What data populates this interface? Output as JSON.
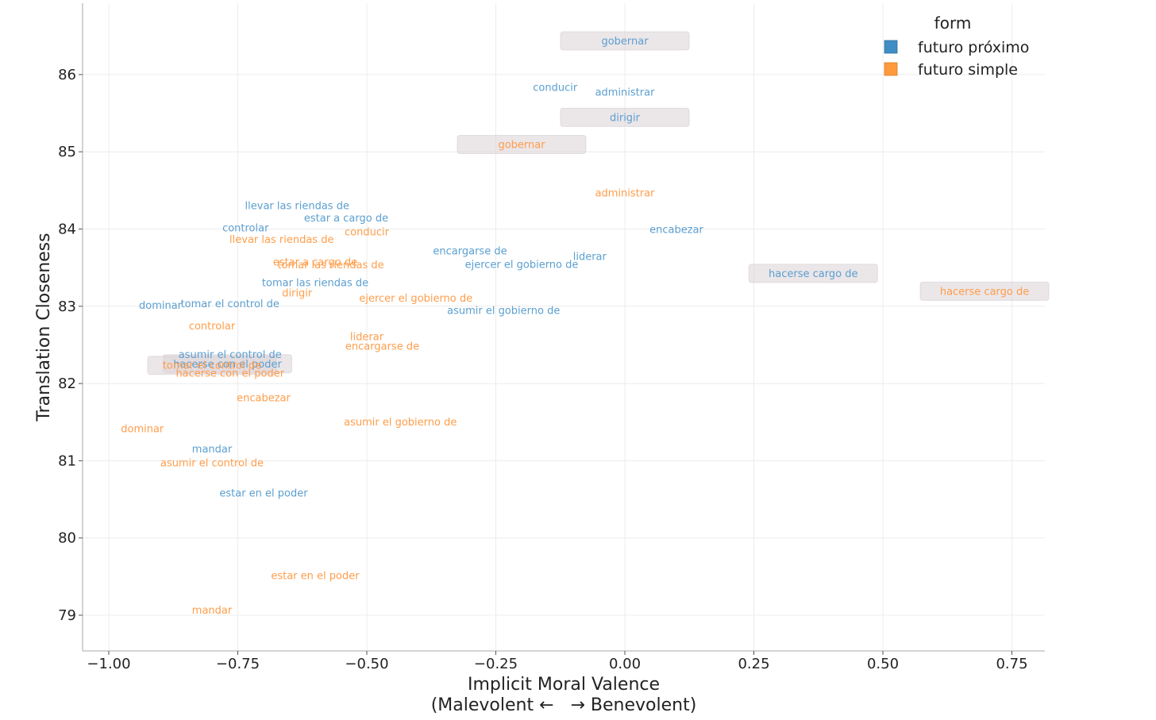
{
  "chart_data": {
    "type": "scatter",
    "xlabel": "Implicit Moral Valence",
    "xlabel_line2": "(Malevolent ←   → Benevolent)",
    "ylabel": "Translation Closeness",
    "xlim": [
      -1.1,
      0.82
    ],
    "ylim": [
      78.5,
      86.9
    ],
    "xticks": [
      -1.0,
      -0.75,
      -0.5,
      -0.25,
      0.0,
      0.25,
      0.5,
      0.75
    ],
    "xtick_labels": [
      "−1.00",
      "−0.75",
      "−0.50",
      "−0.25",
      "0.00",
      "0.25",
      "0.50",
      "0.75"
    ],
    "yticks": [
      79,
      80,
      81,
      82,
      83,
      84,
      85,
      86
    ],
    "ytick_labels": [
      "79",
      "80",
      "81",
      "82",
      "83",
      "84",
      "85",
      "86"
    ],
    "grid": true,
    "legend": {
      "title": "form",
      "position": "top-right",
      "entries": [
        {
          "label": "futuro próximo",
          "color": "#1f77b4"
        },
        {
          "label": "futuro simple",
          "color": "#ff7f0e"
        }
      ]
    },
    "series": [
      {
        "name": "futuro próximo",
        "color": "#5b9fd0",
        "points": [
          {
            "label": "gobernar",
            "x": 0.0,
            "y": 86.43,
            "highlight": true
          },
          {
            "label": "conducir",
            "x": -0.135,
            "y": 85.83
          },
          {
            "label": "administrar",
            "x": 0.0,
            "y": 85.77
          },
          {
            "label": "dirigir",
            "x": 0.0,
            "y": 85.44,
            "highlight": true
          },
          {
            "label": "llevar las riendas de",
            "x": -0.635,
            "y": 84.3
          },
          {
            "label": "estar a cargo de",
            "x": -0.54,
            "y": 84.14
          },
          {
            "label": "controlar",
            "x": -0.735,
            "y": 84.01
          },
          {
            "label": "encabezar",
            "x": 0.1,
            "y": 83.99
          },
          {
            "label": "encargarse de",
            "x": -0.3,
            "y": 83.71
          },
          {
            "label": "liderar",
            "x": -0.068,
            "y": 83.64
          },
          {
            "label": "ejercer el gobierno de",
            "x": -0.2,
            "y": 83.54
          },
          {
            "label": "hacerse cargo de",
            "x": 0.365,
            "y": 83.42,
            "highlight": true
          },
          {
            "label": "tomar las riendas de",
            "x": -0.6,
            "y": 83.3
          },
          {
            "label": "dominar",
            "x": -0.9,
            "y": 83.01
          },
          {
            "label": "tomar el control de",
            "x": -0.765,
            "y": 83.03
          },
          {
            "label": "asumir el gobierno de",
            "x": -0.235,
            "y": 82.94
          },
          {
            "label": "asumir el control de",
            "x": -0.765,
            "y": 82.37
          },
          {
            "label": "hacerse con el poder",
            "x": -0.77,
            "y": 82.25,
            "highlight": true
          },
          {
            "label": "mandar",
            "x": -0.8,
            "y": 81.15
          },
          {
            "label": "estar en el poder",
            "x": -0.7,
            "y": 80.58
          }
        ]
      },
      {
        "name": "futuro simple",
        "color": "#ff9d4a",
        "points": [
          {
            "label": "gobernar",
            "x": -0.2,
            "y": 85.09,
            "highlight": true
          },
          {
            "label": "administrar",
            "x": 0.0,
            "y": 84.46
          },
          {
            "label": "conducir",
            "x": -0.5,
            "y": 83.96
          },
          {
            "label": "llevar las riendas de",
            "x": -0.665,
            "y": 83.86
          },
          {
            "label": "estar a cargo de",
            "x": -0.6,
            "y": 83.57
          },
          {
            "label": "tomar las riendas de",
            "x": -0.57,
            "y": 83.53
          },
          {
            "label": "hacerse cargo de",
            "x": 0.697,
            "y": 83.19,
            "highlight": true
          },
          {
            "label": "dirigir",
            "x": -0.635,
            "y": 83.17
          },
          {
            "label": "ejercer el gobierno de",
            "x": -0.405,
            "y": 83.1
          },
          {
            "label": "controlar",
            "x": -0.8,
            "y": 82.74
          },
          {
            "label": "liderar",
            "x": -0.5,
            "y": 82.6
          },
          {
            "label": "encargarse de",
            "x": -0.47,
            "y": 82.48
          },
          {
            "label": "tomar el control de",
            "x": -0.8,
            "y": 82.23,
            "highlight": true
          },
          {
            "label": "hacerse con el poder",
            "x": -0.765,
            "y": 82.13
          },
          {
            "label": "encabezar",
            "x": -0.7,
            "y": 81.81
          },
          {
            "label": "asumir el gobierno de",
            "x": -0.435,
            "y": 81.5
          },
          {
            "label": "dominar",
            "x": -0.935,
            "y": 81.41
          },
          {
            "label": "asumir el control de",
            "x": -0.8,
            "y": 80.97
          },
          {
            "label": "estar en el poder",
            "x": -0.6,
            "y": 79.51
          },
          {
            "label": "mandar",
            "x": -0.8,
            "y": 79.06
          }
        ]
      }
    ]
  }
}
